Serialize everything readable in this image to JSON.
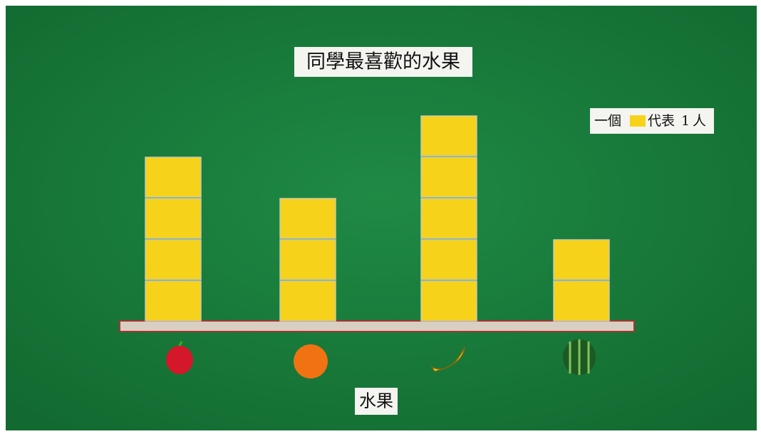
{
  "chart_data": {
    "type": "pictograph",
    "title": "同學最喜歡的水果",
    "x_label": "水果",
    "legend": {
      "prefix": "一個",
      "middle": "代表",
      "unit": 1,
      "suffix": "人"
    },
    "categories": [
      null,
      null,
      null,
      null
    ],
    "values": [
      4,
      3,
      5,
      2
    ],
    "color": "#f6d31a"
  }
}
